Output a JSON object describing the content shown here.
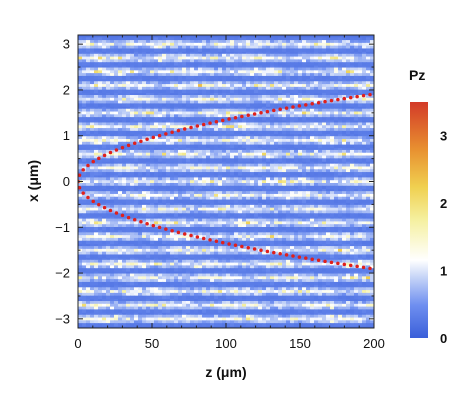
{
  "chart_data": {
    "type": "heatmap",
    "xlabel": "z (μm)",
    "ylabel": "x (μm)",
    "xlim": [
      0,
      200
    ],
    "ylim": [
      -3.2,
      3.2
    ],
    "x_ticks": [
      0,
      50,
      100,
      150,
      200
    ],
    "y_ticks": [
      -3,
      -2,
      -1,
      0,
      1,
      2,
      3
    ],
    "colorbar": {
      "title": "Pz",
      "range": [
        0,
        3.5
      ],
      "ticks": [
        0,
        1,
        2,
        3
      ],
      "colors": [
        "#3a5fd9",
        "#6f8ff0",
        "#c8d6f7",
        "#ffffff",
        "#f5f0a0",
        "#f0d050",
        "#e89030",
        "#d33a28"
      ]
    },
    "field": {
      "description_rows_x": [
        -3.0,
        -2.7,
        -2.4,
        -2.1,
        -1.8,
        -1.5,
        -1.2,
        -0.9,
        -0.6,
        -0.3,
        0.0,
        0.3,
        0.6,
        0.9,
        1.2,
        1.5,
        1.8,
        2.1,
        2.4,
        2.7,
        3.0
      ],
      "peak_value": 2.2,
      "background_value": 0.2
    },
    "overlay_curve": {
      "name": "",
      "color": "#e0201c",
      "style": "dotted",
      "formula_coeff": 0.135,
      "branches": [
        "upper",
        "lower"
      ]
    }
  }
}
